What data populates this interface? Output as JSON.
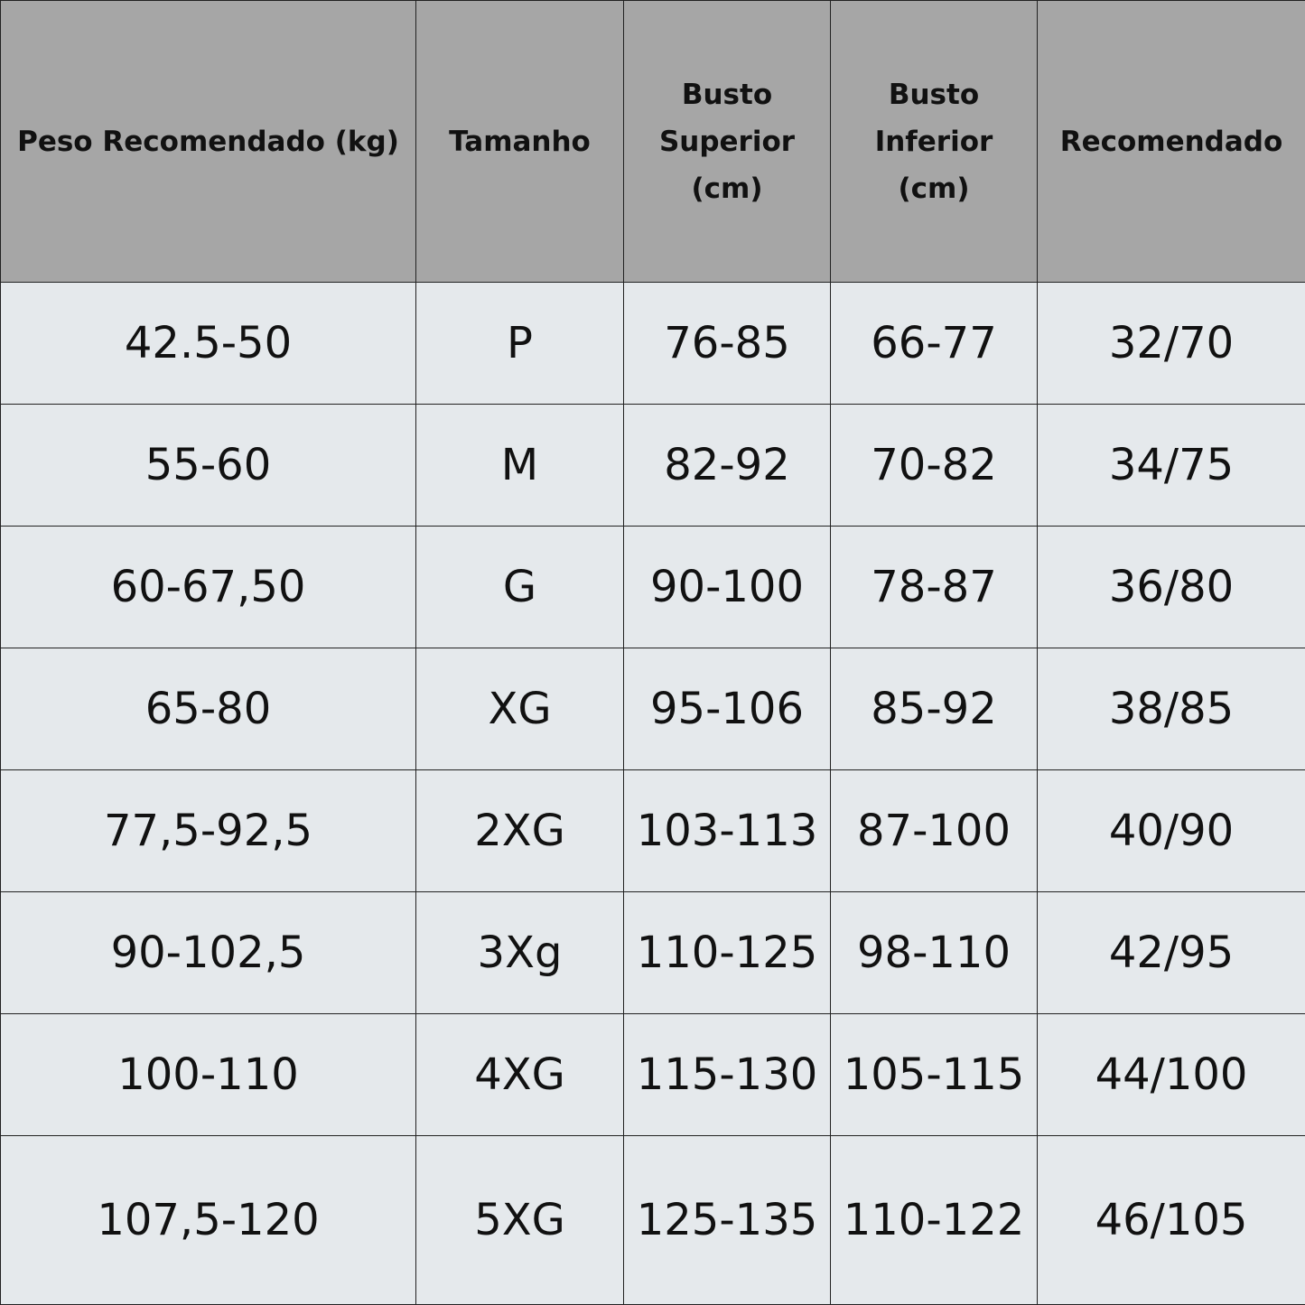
{
  "table": {
    "headers": [
      "Peso Recomendado (kg)",
      "Tamanho",
      "Busto Superior (cm)",
      "Busto Inferior (cm)",
      "Recomendado"
    ],
    "rows": [
      [
        "42.5-50",
        "P",
        "76-85",
        "66-77",
        "32/70"
      ],
      [
        "55-60",
        "M",
        "82-92",
        "70-82",
        "34/75"
      ],
      [
        "60-67,50",
        "G",
        "90-100",
        "78-87",
        "36/80"
      ],
      [
        "65-80",
        "XG",
        "95-106",
        "85-92",
        "38/85"
      ],
      [
        "77,5-92,5",
        "2XG",
        "103-113",
        "87-100",
        "40/90"
      ],
      [
        "90-102,5",
        "3Xg",
        "110-125",
        "98-110",
        "42/95"
      ],
      [
        "100-110",
        "4XG",
        "115-130",
        "105-115",
        "44/100"
      ],
      [
        "107,5-120",
        "5XG",
        "125-135",
        "110-122",
        "46/105"
      ]
    ]
  },
  "colors": {
    "header_bg": "#a6a6a6",
    "body_bg": "#e5e9ec",
    "border": "#222222"
  }
}
